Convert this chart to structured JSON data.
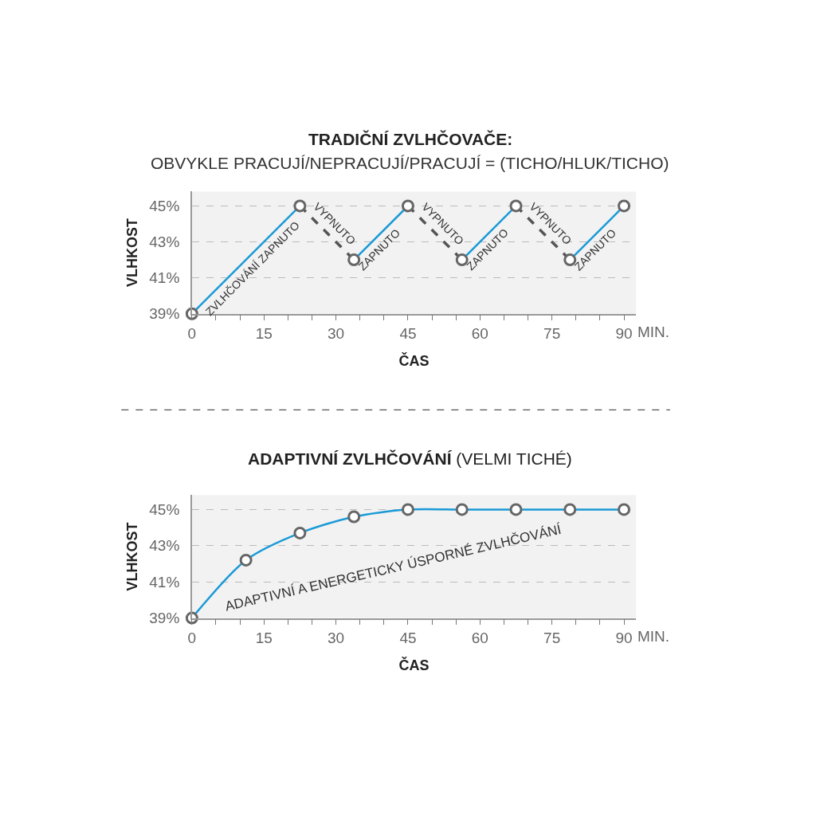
{
  "chart_data": [
    {
      "type": "line",
      "title": "TRADIČNÍ ZVLHČOVAČE:",
      "subtitle": "OBVYKLE PRACUJÍ/NEPRACUJÍ/PRACUJÍ = (TICHO/HLUK/TICHO)",
      "xlabel": "ČAS",
      "ylabel": "VLHKOST",
      "annotations": [
        "MIN.",
        "ZVLHČOVÁNÍ ZAPNUTO",
        "VYPNUTO",
        "ZAPNUTO",
        "VYPNUTO",
        "ZAPNUTO",
        "VYPNUTO",
        "ZAPNUTO"
      ],
      "series": [
        {
          "color": "#1a9ad6",
          "x": [
            0,
            22.5,
            28,
            33.75,
            45,
            50,
            56.25,
            67.5,
            73,
            78.75,
            90
          ],
          "values": [
            39,
            45,
            null,
            42,
            45,
            null,
            42,
            45,
            null,
            42,
            45
          ],
          "line_style": "solid",
          "marker": "none"
        },
        {
          "color": "#555555",
          "x": [
            22.5,
            33.75,
            40,
            45,
            56.25,
            62,
            67.5,
            78.75
          ],
          "values": [
            45,
            42,
            null,
            45,
            42,
            null,
            45,
            42
          ],
          "line_style": "dashed",
          "marker": "none"
        },
        {
          "type": "scatter",
          "color": "#666666",
          "x": [
            0,
            22.5,
            33.75,
            45,
            56.25,
            67.5,
            78.75,
            90
          ],
          "values": [
            39,
            45,
            42,
            45,
            42,
            45,
            42,
            45
          ],
          "marker": "circle"
        }
      ],
      "xlim": [
        0,
        92.5
      ],
      "ylim": [
        39,
        45.8
      ],
      "xticks": [
        0,
        {
          "value": 5,
          "label": null
        },
        {
          "value": 10,
          "label": null
        },
        15,
        {
          "value": 20,
          "label": null
        },
        {
          "value": 25,
          "label": null
        },
        30,
        {
          "value": 35,
          "label": null
        },
        {
          "value": 40,
          "label": null
        },
        45,
        {
          "value": 50,
          "label": null
        },
        {
          "value": 55,
          "label": null
        },
        60,
        {
          "value": 65,
          "label": null
        },
        {
          "value": 70,
          "label": null
        },
        75,
        {
          "value": 80,
          "label": null
        },
        {
          "value": 85,
          "label": null
        },
        90
      ],
      "yticks": [
        {
          "value": 39,
          "label": "39%"
        },
        {
          "value": 41,
          "label": "41%"
        },
        {
          "value": 43,
          "label": "43%"
        },
        {
          "value": 45,
          "label": "45%"
        }
      ],
      "grid": "y"
    },
    {
      "type": "line",
      "title": "ADAPTIVNÍ ZVLHČOVÁNÍ",
      "subtitle": "(VELMI TICHÉ)",
      "xlabel": "ČAS",
      "ylabel": "VLHKOST",
      "annotations": [
        "MIN.",
        "ADAPTIVNÍ A ENERGETICKY ÚSPORNÉ ZVLHČOVÁNÍ"
      ],
      "series": [
        {
          "color": "#1a9ad6",
          "x": [
            0,
            11.25,
            22.5,
            33.75,
            45,
            56.25,
            67.5,
            78.75,
            90
          ],
          "values": [
            39,
            42.2,
            43.7,
            44.6,
            45,
            45,
            45,
            45,
            45
          ],
          "line_style": "solid",
          "marker": "circle"
        }
      ],
      "xlim": [
        0,
        92.5
      ],
      "ylim": [
        39,
        45.8
      ],
      "xticks": [
        0,
        {
          "value": 5,
          "label": null
        },
        {
          "value": 10,
          "label": null
        },
        15,
        {
          "value": 20,
          "label": null
        },
        {
          "value": 25,
          "label": null
        },
        30,
        {
          "value": 35,
          "label": null
        },
        {
          "value": 40,
          "label": null
        },
        45,
        {
          "value": 50,
          "label": null
        },
        {
          "value": 55,
          "label": null
        },
        60,
        {
          "value": 65,
          "label": null
        },
        {
          "value": 70,
          "label": null
        },
        75,
        {
          "value": 80,
          "label": null
        },
        {
          "value": 85,
          "label": null
        },
        90
      ],
      "yticks": [
        {
          "value": 39,
          "label": "39%"
        },
        {
          "value": 41,
          "label": "41%"
        },
        {
          "value": 43,
          "label": "43%"
        },
        {
          "value": 45,
          "label": "45%"
        }
      ],
      "grid": "y"
    }
  ]
}
